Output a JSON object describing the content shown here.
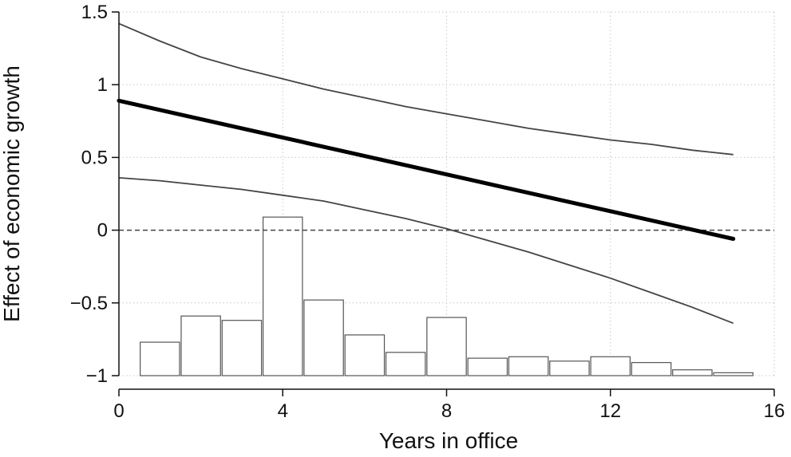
{
  "chart_data": {
    "type": "line",
    "title": "",
    "xlabel": "Years in office",
    "ylabel": "Effect of economic growth",
    "xlim": [
      0,
      16
    ],
    "ylim": [
      -1.0,
      1.5
    ],
    "x_ticks": [
      0,
      4,
      8,
      12,
      16
    ],
    "x_tick_labels": [
      "0",
      "4",
      "8",
      "12",
      "16"
    ],
    "y_ticks": [
      1.5,
      1,
      0.5,
      0,
      -0.5,
      -1
    ],
    "y_tick_labels": [
      "1.5",
      "1",
      "0.5",
      "0",
      "−0.5",
      "−1"
    ],
    "grid": true,
    "reference_line_y": 0,
    "series": [
      {
        "role": "estimate",
        "x": [
          0,
          15
        ],
        "values": [
          0.89,
          -0.06
        ]
      },
      {
        "role": "upper-bound",
        "x": [
          0,
          1,
          2,
          3,
          4,
          5,
          6,
          7,
          8,
          9,
          10,
          11,
          12,
          13,
          14,
          15
        ],
        "values": [
          1.42,
          1.3,
          1.19,
          1.11,
          1.04,
          0.97,
          0.91,
          0.85,
          0.8,
          0.75,
          0.7,
          0.66,
          0.62,
          0.59,
          0.55,
          0.52
        ]
      },
      {
        "role": "lower-bound",
        "x": [
          0,
          1,
          2,
          3,
          4,
          5,
          6,
          7,
          8,
          9,
          10,
          11,
          12,
          13,
          14,
          15
        ],
        "values": [
          0.36,
          0.34,
          0.31,
          0.28,
          0.24,
          0.2,
          0.14,
          0.08,
          0.01,
          -0.07,
          -0.15,
          -0.24,
          -0.33,
          -0.43,
          -0.53,
          -0.64
        ]
      }
    ],
    "histogram": {
      "baseline": -1.0,
      "bins": [
        {
          "start": 0.5,
          "end": 1.5,
          "top": -0.77
        },
        {
          "start": 1.5,
          "end": 2.5,
          "top": -0.59
        },
        {
          "start": 2.5,
          "end": 3.5,
          "top": -0.62
        },
        {
          "start": 3.5,
          "end": 4.5,
          "top": 0.09
        },
        {
          "start": 4.5,
          "end": 5.5,
          "top": -0.48
        },
        {
          "start": 5.5,
          "end": 6.5,
          "top": -0.72
        },
        {
          "start": 6.5,
          "end": 7.5,
          "top": -0.84
        },
        {
          "start": 7.5,
          "end": 8.5,
          "top": -0.6
        },
        {
          "start": 8.5,
          "end": 9.5,
          "top": -0.88
        },
        {
          "start": 9.5,
          "end": 10.5,
          "top": -0.87
        },
        {
          "start": 10.5,
          "end": 11.5,
          "top": -0.9
        },
        {
          "start": 11.5,
          "end": 12.5,
          "top": -0.87
        },
        {
          "start": 12.5,
          "end": 13.5,
          "top": -0.91
        },
        {
          "start": 13.5,
          "end": 14.5,
          "top": -0.96
        },
        {
          "start": 14.5,
          "end": 15.5,
          "top": -0.98
        }
      ]
    }
  }
}
